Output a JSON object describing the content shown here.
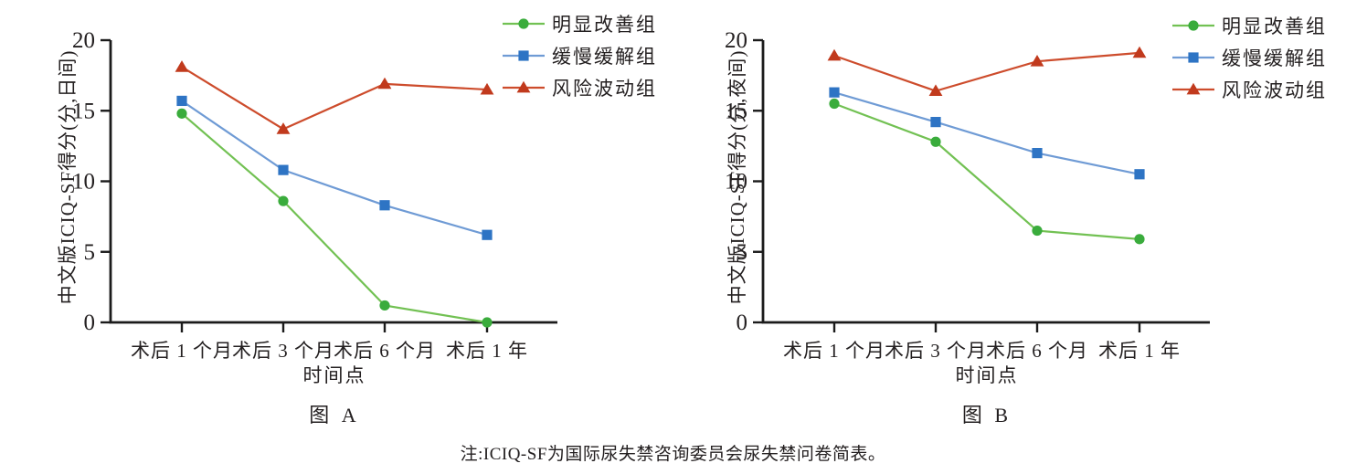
{
  "figure": {
    "note": "注:ICIQ-SF为国际尿失禁咨询委员会尿失禁问卷简表。"
  },
  "colors": {
    "background": "#ffffff",
    "axis": "#1b1b1b",
    "text": "#242021",
    "green_marker": "#3aac3c",
    "green_line": "#72c153",
    "blue_marker": "#2e74c4",
    "blue_line": "#6f9bd5",
    "red_marker": "#c13a1d",
    "red_line": "#cd4c2c"
  },
  "chart_data": [
    {
      "type": "line",
      "panel_label": "图 A",
      "ylabel": "中文版ICIQ-SF得分(分,日间)",
      "xlabel": "时间点",
      "categories": [
        "术后 1 个月",
        "术后 3 个月",
        "术后 6 个月",
        "术后 1 年"
      ],
      "ylim": [
        0,
        20
      ],
      "yticks": [
        0,
        5,
        10,
        15,
        20
      ],
      "grid": false,
      "legend_position": "outside-top-right",
      "series": [
        {
          "name": "明显改善组",
          "marker": "circle",
          "color": "#3aac3c",
          "line_color": "#72c153",
          "values": [
            14.8,
            8.6,
            1.2,
            0.0
          ]
        },
        {
          "name": "缓慢缓解组",
          "marker": "square",
          "color": "#2e74c4",
          "line_color": "#6f9bd5",
          "values": [
            15.7,
            10.8,
            8.3,
            6.2
          ]
        },
        {
          "name": "风险波动组",
          "marker": "triangle",
          "color": "#c13a1d",
          "line_color": "#cd4c2c",
          "values": [
            18.1,
            13.7,
            16.9,
            16.5
          ]
        }
      ]
    },
    {
      "type": "line",
      "panel_label": "图 B",
      "ylabel": "中文版ICIQ-SF得分(分,夜间)",
      "xlabel": "时间点",
      "categories": [
        "术后 1 个月",
        "术后 3 个月",
        "术后 6 个月",
        "术后 1 年"
      ],
      "ylim": [
        0,
        20
      ],
      "yticks": [
        0,
        5,
        10,
        15,
        20
      ],
      "grid": false,
      "legend_position": "outside-top-right",
      "series": [
        {
          "name": "明显改善组",
          "marker": "circle",
          "color": "#3aac3c",
          "line_color": "#72c153",
          "values": [
            15.5,
            12.8,
            6.5,
            5.9
          ]
        },
        {
          "name": "缓慢缓解组",
          "marker": "square",
          "color": "#2e74c4",
          "line_color": "#6f9bd5",
          "values": [
            16.3,
            14.2,
            12.0,
            10.5
          ]
        },
        {
          "name": "风险波动组",
          "marker": "triangle",
          "color": "#c13a1d",
          "line_color": "#cd4c2c",
          "values": [
            18.9,
            16.4,
            18.5,
            19.1
          ]
        }
      ]
    }
  ]
}
